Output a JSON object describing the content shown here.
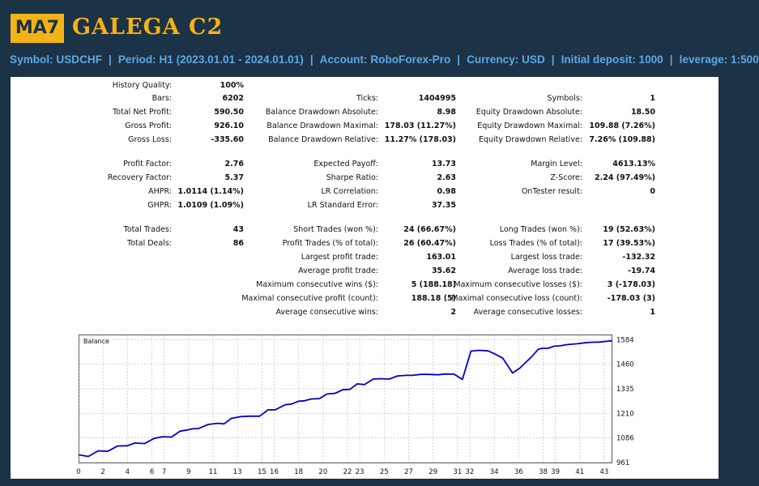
{
  "header": {
    "logo_badge": "MA7",
    "logo_title": "GALEGA C2",
    "symbol_line": [
      "Symbol: USDCHF",
      "Period: H1 (2023.01.01 - 2024.01.01)",
      "Account: RoboForex-Pro",
      "Currency: USD",
      "Initial deposit: 1000",
      "leverage: 1:500"
    ]
  },
  "stats": [
    [
      {
        "label": "History Quality:",
        "value": "100%"
      },
      {
        "label": "",
        "value": ""
      },
      {
        "label": "",
        "value": ""
      }
    ],
    [
      {
        "label": "Bars:",
        "value": "6202"
      },
      {
        "label": "Ticks:",
        "value": "1404995"
      },
      {
        "label": "Symbols:",
        "value": "1"
      }
    ],
    [
      {
        "label": "Total Net Profit:",
        "value": "590.50"
      },
      {
        "label": "Balance Drawdown Absolute:",
        "value": "8.98"
      },
      {
        "label": "Equity Drawdown Absolute:",
        "value": "18.50"
      }
    ],
    [
      {
        "label": "Gross Profit:",
        "value": "926.10"
      },
      {
        "label": "Balance Drawdown Maximal:",
        "value": "178.03 (11.27%)"
      },
      {
        "label": "Equity Drawdown Maximal:",
        "value": "109.88 (7.26%)"
      }
    ],
    [
      {
        "label": "Gross Loss:",
        "value": "-335.60"
      },
      {
        "label": "Balance Drawdown Relative:",
        "value": "11.27% (178.03)"
      },
      {
        "label": "Equity Drawdown Relative:",
        "value": "7.26% (109.88)"
      }
    ],
    [
      {
        "label": "Profit Factor:",
        "value": "2.76"
      },
      {
        "label": "Expected Payoff:",
        "value": "13.73"
      },
      {
        "label": "Margin Level:",
        "value": "4613.13%"
      }
    ],
    [
      {
        "label": "Recovery Factor:",
        "value": "5.37"
      },
      {
        "label": "Sharpe Ratio:",
        "value": "2.63"
      },
      {
        "label": "Z-Score:",
        "value": "2.24 (97.49%)"
      }
    ],
    [
      {
        "label": "AHPR:",
        "value": "1.0114 (1.14%)"
      },
      {
        "label": "LR Correlation:",
        "value": "0.98"
      },
      {
        "label": "OnTester result:",
        "value": "0"
      }
    ],
    [
      {
        "label": "GHPR:",
        "value": "1.0109 (1.09%)"
      },
      {
        "label": "LR Standard Error:",
        "value": "37.35"
      },
      {
        "label": "",
        "value": ""
      }
    ],
    [
      {
        "label": "Total Trades:",
        "value": "43"
      },
      {
        "label": "Short Trades (won %):",
        "value": "24 (66.67%)"
      },
      {
        "label": "Long Trades (won %):",
        "value": "19 (52.63%)"
      }
    ],
    [
      {
        "label": "Total Deals:",
        "value": "86"
      },
      {
        "label": "Profit Trades (% of total):",
        "value": "26 (60.47%)"
      },
      {
        "label": "Loss Trades (% of total):",
        "value": "17 (39.53%)"
      }
    ],
    [
      {
        "label": "",
        "value": ""
      },
      {
        "label": "Largest profit trade:",
        "value": "163.01"
      },
      {
        "label": "Largest loss trade:",
        "value": "-132.32"
      }
    ],
    [
      {
        "label": "",
        "value": ""
      },
      {
        "label": "Average profit trade:",
        "value": "35.62"
      },
      {
        "label": "Average loss trade:",
        "value": "-19.74"
      }
    ],
    [
      {
        "label": "",
        "value": ""
      },
      {
        "label": "Maximum consecutive wins ($):",
        "value": "5 (188.18)"
      },
      {
        "label": "Maximum consecutive losses ($):",
        "value": "3 (-178.03)"
      }
    ],
    [
      {
        "label": "",
        "value": ""
      },
      {
        "label": "Maximal consecutive profit (count):",
        "value": "188.18 (5)"
      },
      {
        "label": "Maximal consecutive loss (count):",
        "value": "-178.03 (3)"
      }
    ],
    [
      {
        "label": "",
        "value": ""
      },
      {
        "label": "Average consecutive wins:",
        "value": "2"
      },
      {
        "label": "Average consecutive losses:",
        "value": "1"
      }
    ]
  ],
  "chart_data": {
    "type": "line",
    "title": "Balance",
    "x_ticks": [
      0,
      2,
      4,
      6,
      7,
      9,
      11,
      13,
      15,
      16,
      18,
      20,
      22,
      23,
      25,
      27,
      29,
      31,
      32,
      34,
      36,
      38,
      39,
      41,
      43
    ],
    "y_ticks": [
      961,
      1086,
      1210,
      1335,
      1460,
      1584
    ],
    "xlim": [
      0,
      43.6
    ],
    "ylim": [
      961,
      1610
    ],
    "grid": true,
    "line_color": "#0000cc",
    "series": [
      {
        "x": [
          0,
          0.8,
          1.6,
          2.4,
          3.2,
          4.0,
          4.6,
          5.4,
          6.2,
          6.9,
          7.6,
          8.3,
          8.9,
          9.3,
          9.8,
          10.6,
          11.4,
          11.9,
          12.5,
          13.3,
          14.0,
          14.8,
          15.5,
          16.1,
          16.9,
          17.4,
          18.0,
          18.5,
          19.0,
          19.7,
          20.3,
          21.0,
          21.6,
          22.2,
          22.8,
          23.4,
          24.1,
          24.7,
          25.4,
          26.1,
          26.8,
          27.3,
          28.0,
          28.7,
          29.4,
          30.0,
          30.7,
          31.4,
          32.1,
          32.8,
          33.5,
          34.1,
          34.7,
          35.5,
          36.1,
          36.6,
          37.1,
          37.6,
          37.9,
          38.4,
          38.9,
          39.4,
          40.0,
          40.8,
          41.4,
          42.0,
          42.6,
          43.1,
          43.6
        ],
        "y": [
          1000,
          992,
          1020,
          1018,
          1045,
          1046,
          1060,
          1057,
          1084,
          1092,
          1090,
          1120,
          1126,
          1132,
          1133,
          1154,
          1160,
          1157,
          1185,
          1194,
          1196,
          1196,
          1228,
          1229,
          1254,
          1257,
          1272,
          1274,
          1283,
          1285,
          1308,
          1312,
          1330,
          1332,
          1360,
          1356,
          1384,
          1386,
          1384,
          1400,
          1403,
          1403,
          1408,
          1408,
          1406,
          1410,
          1409,
          1383,
          1526,
          1530,
          1527,
          1510,
          1490,
          1415,
          1440,
          1470,
          1500,
          1535,
          1540,
          1540,
          1551,
          1553,
          1559,
          1563,
          1568,
          1571,
          1572,
          1575,
          1578
        ]
      }
    ]
  }
}
